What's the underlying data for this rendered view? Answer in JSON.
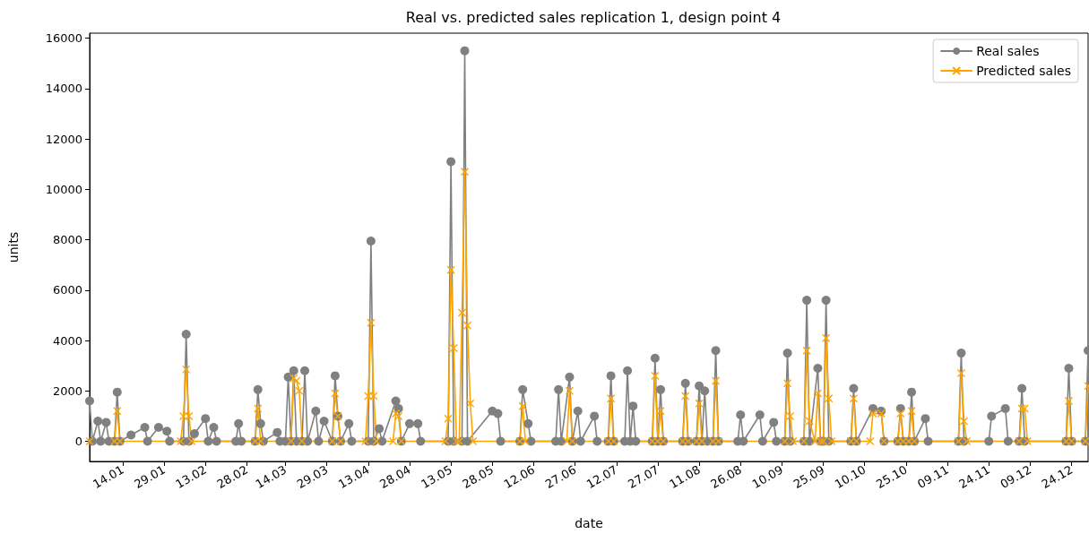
{
  "chart_data": {
    "type": "line",
    "title": "Real vs. predicted sales replication 1, design point 4",
    "xlabel": "date",
    "ylabel": "units",
    "xlim": [
      "--01-02",
      "--12-30"
    ],
    "xticks": [
      {
        "value": "--01-14",
        "label": "14.01"
      },
      {
        "value": "--01-29",
        "label": "29.01"
      },
      {
        "value": "--02-13",
        "label": "13.02"
      },
      {
        "value": "--02-28",
        "label": "28.02"
      },
      {
        "value": "--03-14",
        "label": "14.03"
      },
      {
        "value": "--03-29",
        "label": "29.03"
      },
      {
        "value": "--04-13",
        "label": "13.04"
      },
      {
        "value": "--04-28",
        "label": "28.04"
      },
      {
        "value": "--05-13",
        "label": "13.05"
      },
      {
        "value": "--05-28",
        "label": "28.05"
      },
      {
        "value": "--06-12",
        "label": "12.06"
      },
      {
        "value": "--06-27",
        "label": "27.06"
      },
      {
        "value": "--07-12",
        "label": "12.07"
      },
      {
        "value": "--07-27",
        "label": "27.07"
      },
      {
        "value": "--08-11",
        "label": "11.08"
      },
      {
        "value": "--08-26",
        "label": "26.08"
      },
      {
        "value": "--09-10",
        "label": "10.09"
      },
      {
        "value": "--09-25",
        "label": "25.09"
      },
      {
        "value": "--10-10",
        "label": "10.10"
      },
      {
        "value": "--10-25",
        "label": "25.10"
      },
      {
        "value": "--11-09",
        "label": "09.11"
      },
      {
        "value": "--11-24",
        "label": "24.11"
      },
      {
        "value": "--12-09",
        "label": "09.12"
      },
      {
        "value": "--12-24",
        "label": "24.12"
      }
    ],
    "ylim": [
      -800,
      16200
    ],
    "yticks": [
      0,
      2000,
      4000,
      6000,
      8000,
      10000,
      12000,
      14000,
      16000
    ],
    "grid": false,
    "legend": "top right",
    "series": [
      {
        "name": "Real sales",
        "color": "#808080",
        "marker": "circle",
        "x": [
          "--01-02",
          "--01-03",
          "--01-05",
          "--01-06",
          "--01-08",
          "--01-09",
          "--01-11",
          "--01-12",
          "--01-13",
          "--01-17",
          "--01-22",
          "--01-23",
          "--01-27",
          "--01-30",
          "--01-31",
          "--02-05",
          "--02-06",
          "--02-07",
          "--02-09",
          "--02-13",
          "--02-14",
          "--02-16",
          "--02-17",
          "--02-24",
          "--02-25",
          "--02-26",
          "--03-03",
          "--03-04",
          "--03-05",
          "--03-06",
          "--03-11",
          "--03-12",
          "--03-14",
          "--03-15",
          "--03-16",
          "--03-17",
          "--03-18",
          "--03-20",
          "--03-21",
          "--03-22",
          "--03-25",
          "--03-26",
          "--03-28",
          "--03-31",
          "--04-01",
          "--04-02",
          "--04-03",
          "--04-06",
          "--04-07",
          "--04-13",
          "--04-14",
          "--04-15",
          "--04-17",
          "--04-18",
          "--04-23",
          "--04-24",
          "--04-25",
          "--04-28",
          "--05-01",
          "--05-02",
          "--05-12",
          "--05-13",
          "--05-14",
          "--05-17",
          "--05-18",
          "--05-19",
          "--05-28",
          "--05-30",
          "--05-31",
          "--06-07",
          "--06-08",
          "--06-10",
          "--06-11",
          "--06-20",
          "--06-21",
          "--06-22",
          "--06-25",
          "--06-26",
          "--06-28",
          "--06-29",
          "--07-04",
          "--07-05",
          "--07-09",
          "--07-10",
          "--07-11",
          "--07-15",
          "--07-16",
          "--07-17",
          "--07-18",
          "--07-19",
          "--07-25",
          "--07-26",
          "--07-27",
          "--07-28",
          "--07-29",
          "--08-05",
          "--08-06",
          "--08-07",
          "--08-10",
          "--08-11",
          "--08-12",
          "--08-13",
          "--08-14",
          "--08-16",
          "--08-17",
          "--08-18",
          "--08-25",
          "--08-26",
          "--08-27",
          "--09-02",
          "--09-03",
          "--09-07",
          "--09-08",
          "--09-11",
          "--09-12",
          "--09-13",
          "--09-18",
          "--09-19",
          "--09-20",
          "--09-23",
          "--09-24",
          "--09-25",
          "--09-26",
          "--09-27",
          "--10-05",
          "--10-06",
          "--10-07",
          "--10-13",
          "--10-16",
          "--10-17",
          "--10-22",
          "--10-23",
          "--10-24",
          "--10-26",
          "--10-27",
          "--10-28",
          "--11-01",
          "--11-02",
          "--11-13",
          "--11-14",
          "--11-15",
          "--11-24",
          "--11-25",
          "--11-30",
          "--12-01",
          "--12-05",
          "--12-06",
          "--12-07",
          "--12-22",
          "--12-23",
          "--12-24",
          "--12-29",
          "--12-30"
        ],
        "values": [
          1600,
          0,
          800,
          0,
          750,
          0,
          0,
          1950,
          0,
          250,
          550,
          0,
          550,
          400,
          0,
          0,
          4250,
          0,
          300,
          900,
          0,
          550,
          0,
          0,
          700,
          0,
          0,
          2050,
          700,
          0,
          350,
          0,
          0,
          2550,
          0,
          2800,
          0,
          0,
          2800,
          0,
          1200,
          0,
          800,
          0,
          2600,
          1000,
          0,
          700,
          0,
          0,
          7950,
          0,
          500,
          0,
          1600,
          1300,
          0,
          700,
          700,
          0,
          0,
          11100,
          0,
          0,
          15500,
          0,
          1200,
          1100,
          0,
          0,
          2050,
          700,
          0,
          0,
          2050,
          0,
          2550,
          0,
          1200,
          0,
          1000,
          0,
          0,
          2600,
          0,
          0,
          2800,
          0,
          1400,
          0,
          0,
          3300,
          0,
          2050,
          0,
          0,
          2300,
          0,
          0,
          2200,
          0,
          2000,
          0,
          0,
          3600,
          0,
          0,
          1050,
          0,
          1050,
          0,
          750,
          0,
          0,
          3500,
          0,
          0,
          5600,
          0,
          2900,
          0,
          0,
          5600,
          0,
          0,
          2100,
          0,
          1300,
          1200,
          0,
          0,
          1300,
          0,
          0,
          1950,
          0,
          900,
          0,
          0,
          3500,
          0,
          0,
          1000,
          1300,
          0,
          0,
          2100,
          0,
          0,
          2900,
          0,
          0,
          3600
        ]
      },
      {
        "name": "Predicted sales",
        "color": "#ffa500",
        "marker": "cross",
        "x": [
          "--01-02",
          "--01-11",
          "--01-12",
          "--01-13",
          "--02-04",
          "--02-05",
          "--02-06",
          "--02-07",
          "--02-08",
          "--03-03",
          "--03-04",
          "--03-05",
          "--03-16",
          "--03-17",
          "--03-18",
          "--03-19",
          "--03-20",
          "--03-31",
          "--04-01",
          "--04-02",
          "--04-03",
          "--04-12",
          "--04-13",
          "--04-14",
          "--04-15",
          "--04-16",
          "--04-22",
          "--04-23",
          "--04-24",
          "--04-25",
          "--05-11",
          "--05-12",
          "--05-13",
          "--05-14",
          "--05-15",
          "--05-16",
          "--05-17",
          "--05-18",
          "--05-19",
          "--05-20",
          "--05-21",
          "--06-07",
          "--06-08",
          "--06-09",
          "--06-24",
          "--06-25",
          "--06-26",
          "--07-09",
          "--07-10",
          "--07-11",
          "--07-25",
          "--07-26",
          "--07-27",
          "--07-28",
          "--07-29",
          "--08-05",
          "--08-06",
          "--08-07",
          "--08-10",
          "--08-11",
          "--08-12",
          "--08-16",
          "--08-17",
          "--08-18",
          "--09-11",
          "--09-12",
          "--09-13",
          "--09-14",
          "--09-18",
          "--09-19",
          "--09-20",
          "--09-22",
          "--09-23",
          "--09-24",
          "--09-25",
          "--09-26",
          "--09-27",
          "--09-28",
          "--10-05",
          "--10-06",
          "--10-07",
          "--10-12",
          "--10-13",
          "--10-16",
          "--10-17",
          "--10-22",
          "--10-23",
          "--10-24",
          "--10-26",
          "--10-27",
          "--10-28",
          "--11-13",
          "--11-14",
          "--11-15",
          "--11-16",
          "--12-05",
          "--12-06",
          "--12-07",
          "--12-08",
          "--12-22",
          "--12-23",
          "--12-24",
          "--12-29",
          "--12-30"
        ],
        "values": [
          0,
          0,
          1200,
          0,
          0,
          1000,
          2850,
          1000,
          0,
          0,
          1300,
          0,
          0,
          2500,
          2400,
          2000,
          0,
          0,
          1900,
          1000,
          0,
          0,
          1800,
          4700,
          1800,
          0,
          0,
          1100,
          1000,
          0,
          0,
          900,
          6800,
          3700,
          0,
          0,
          5100,
          10700,
          4600,
          1500,
          0,
          0,
          1400,
          0,
          0,
          2000,
          0,
          0,
          1700,
          0,
          0,
          2600,
          0,
          1200,
          0,
          0,
          1800,
          0,
          0,
          1500,
          0,
          0,
          2400,
          0,
          0,
          2300,
          1000,
          0,
          0,
          3600,
          800,
          0,
          1900,
          0,
          0,
          4100,
          1700,
          0,
          0,
          1700,
          0,
          0,
          1100,
          1100,
          0,
          0,
          1100,
          0,
          0,
          1200,
          0,
          0,
          2700,
          800,
          0,
          0,
          1300,
          1300,
          0,
          0,
          1600,
          0,
          0,
          2200
        ]
      }
    ]
  }
}
